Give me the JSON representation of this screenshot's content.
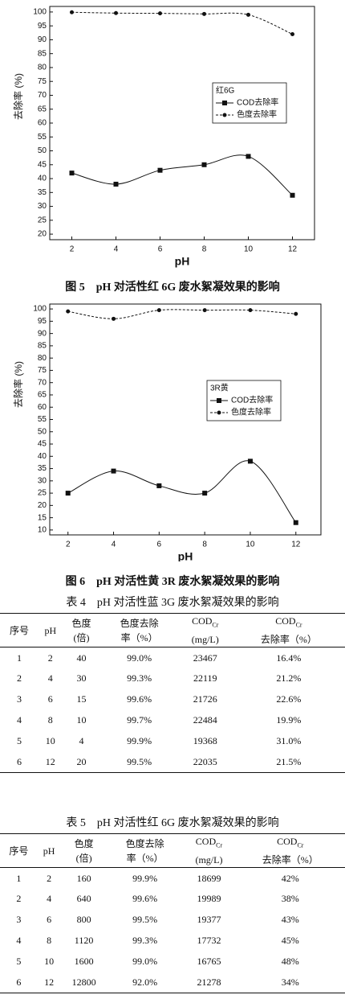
{
  "chart_data": [
    {
      "type": "line",
      "x": [
        2,
        4,
        6,
        8,
        10,
        12
      ],
      "xlim": [
        1,
        13
      ],
      "xticks": [
        2,
        4,
        6,
        8,
        10,
        12
      ],
      "ylim": [
        18,
        102
      ],
      "yticks": [
        20,
        25,
        30,
        35,
        40,
        45,
        50,
        55,
        60,
        65,
        70,
        75,
        80,
        85,
        90,
        95,
        100
      ],
      "xlabel": "pH",
      "ylabel": "去除率 (%)",
      "legend_title": "红6G",
      "series": [
        {
          "name": "COD去除率",
          "color": "#111111",
          "marker": "square",
          "dash": false,
          "values": [
            42,
            38,
            43,
            45,
            48,
            34
          ]
        },
        {
          "name": "色度去除率",
          "color": "#111111",
          "marker": "circle",
          "dash": true,
          "values": [
            99.9,
            99.6,
            99.5,
            99.3,
            99.0,
            92.0
          ]
        }
      ]
    },
    {
      "type": "line",
      "x": [
        2,
        4,
        6,
        8,
        10,
        12
      ],
      "xlim": [
        1.2,
        13.1
      ],
      "xticks": [
        2,
        4,
        6,
        8,
        10,
        12
      ],
      "ylim": [
        8,
        102
      ],
      "yticks": [
        10,
        15,
        20,
        25,
        30,
        35,
        40,
        45,
        50,
        55,
        60,
        65,
        70,
        75,
        80,
        85,
        90,
        95,
        100
      ],
      "xlabel": "pH",
      "ylabel": "去除率 (%)",
      "legend_title": "3R黄",
      "series": [
        {
          "name": "COD去除率",
          "color": "#111111",
          "marker": "square",
          "dash": false,
          "values": [
            25,
            34,
            28,
            25,
            38,
            13
          ]
        },
        {
          "name": "色度去除率",
          "color": "#111111",
          "marker": "circle",
          "dash": true,
          "values": [
            99,
            96,
            99.5,
            99.5,
            99.5,
            98
          ]
        }
      ]
    }
  ],
  "captions": [
    "图 5　pH 对活性红 6G 废水絮凝效果的影响",
    "图 6　pH 对活性黄 3R 废水絮凝效果的影响"
  ],
  "tables": [
    {
      "caption": "表 4　pH 对活性蓝 3G 废水絮凝效果的影响",
      "header": [
        {
          "lines": [
            "序号"
          ]
        },
        {
          "lines": [
            "pH"
          ]
        },
        {
          "lines": [
            "色度",
            "(倍)"
          ]
        },
        {
          "lines": [
            "色度去除",
            "率（%）"
          ]
        },
        {
          "text": "COD",
          "sub": "Cr",
          "line2": "(mg/L)"
        },
        {
          "text": "COD",
          "sub": "Cr",
          "line2": "去除率（%）"
        }
      ],
      "rows": [
        [
          "1",
          "2",
          "40",
          "99.0%",
          "23467",
          "16.4%"
        ],
        [
          "2",
          "4",
          "30",
          "99.3%",
          "22119",
          "21.2%"
        ],
        [
          "3",
          "6",
          "15",
          "99.6%",
          "21726",
          "22.6%"
        ],
        [
          "4",
          "8",
          "10",
          "99.7%",
          "22484",
          "19.9%"
        ],
        [
          "5",
          "10",
          "4",
          "99.9%",
          "19368",
          "31.0%"
        ],
        [
          "6",
          "12",
          "20",
          "99.5%",
          "22035",
          "21.5%"
        ]
      ]
    },
    {
      "caption": "表 5　pH 对活性红 6G 废水絮凝效果的影响",
      "header": [
        {
          "lines": [
            "序号"
          ]
        },
        {
          "lines": [
            "pH"
          ]
        },
        {
          "lines": [
            "色度",
            "(倍)"
          ]
        },
        {
          "lines": [
            "色度去除",
            "率（%）"
          ]
        },
        {
          "text": "COD",
          "sub": "Cr",
          "line2": "(mg/L)"
        },
        {
          "text": "COD",
          "sub": "Cr",
          "line2": "去除率（%）"
        }
      ],
      "rows": [
        [
          "1",
          "2",
          "160",
          "99.9%",
          "18699",
          "42%"
        ],
        [
          "2",
          "4",
          "640",
          "99.6%",
          "19989",
          "38%"
        ],
        [
          "3",
          "6",
          "800",
          "99.5%",
          "19377",
          "43%"
        ],
        [
          "4",
          "8",
          "1120",
          "99.3%",
          "17732",
          "45%"
        ],
        [
          "5",
          "10",
          "1600",
          "99.0%",
          "16765",
          "48%"
        ],
        [
          "6",
          "12",
          "12800",
          "92.0%",
          "21278",
          "34%"
        ]
      ]
    }
  ]
}
